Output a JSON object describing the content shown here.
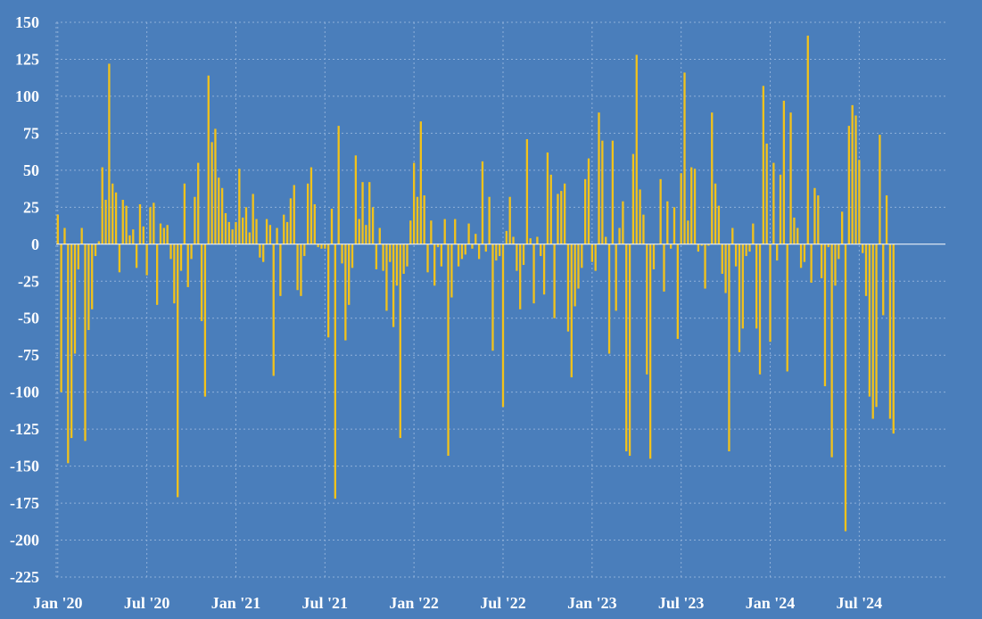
{
  "chart_data": {
    "type": "bar",
    "title": "",
    "xlabel": "",
    "ylabel": "",
    "ylim": [
      -225,
      150
    ],
    "yticks": [
      150,
      125,
      100,
      75,
      50,
      25,
      0,
      -25,
      -50,
      -75,
      -100,
      -125,
      -150,
      -175,
      -200,
      -225
    ],
    "xticks": [
      {
        "label": "Jan '20",
        "index": 0
      },
      {
        "label": "Jul '20",
        "index": 26
      },
      {
        "label": "Jan '21",
        "index": 52
      },
      {
        "label": "Jul '21",
        "index": 78
      },
      {
        "label": "Jan '22",
        "index": 104
      },
      {
        "label": "Jul '22",
        "index": 130
      },
      {
        "label": "Jan '23",
        "index": 156
      },
      {
        "label": "Jul '23",
        "index": 182
      },
      {
        "label": "Jan '24",
        "index": 208
      },
      {
        "label": "Jul '24",
        "index": 234
      }
    ],
    "frequency": "weekly",
    "grid": true,
    "colors": {
      "background": "#4a7ebb",
      "bar": "#f2c21b",
      "grid": "#8fb0d9",
      "zero_line": "#ffffff",
      "text": "#ffffff"
    },
    "series": [
      {
        "values": [
          20,
          -100,
          11,
          -148,
          -131,
          -74,
          -17,
          11,
          -133,
          -58,
          -44,
          -8,
          2,
          52,
          30,
          122,
          41,
          35,
          -19,
          30,
          26,
          6,
          10,
          -16,
          27,
          12,
          -21,
          25,
          28,
          -41,
          14,
          11,
          13,
          -10,
          -40,
          -171,
          -18,
          41,
          -29,
          -10,
          32,
          55,
          -52,
          -103,
          114,
          69,
          78,
          45,
          38,
          21,
          15,
          10,
          15,
          51,
          18,
          25,
          8,
          34,
          17,
          -9,
          -12,
          17,
          13,
          -89,
          11,
          -35,
          20,
          15,
          31,
          40,
          -31,
          -35,
          -8,
          41,
          52,
          27,
          -2,
          -3,
          -3,
          -63,
          24,
          -172,
          80,
          -13,
          -65,
          -41,
          -16,
          60,
          17,
          42,
          13,
          42,
          25,
          -17,
          11,
          -18,
          -45,
          -12,
          -56,
          -28,
          -131,
          -20,
          -15,
          16,
          55,
          32,
          83,
          33,
          -19,
          16,
          -28,
          -2,
          -15,
          17,
          -143,
          -36,
          17,
          -15,
          -10,
          -7,
          14,
          -3,
          7,
          -10,
          56,
          -5,
          32,
          -72,
          -11,
          -8,
          -110,
          9,
          32,
          5,
          -18,
          -44,
          -14,
          71,
          4,
          -40,
          5,
          -8,
          -34,
          62,
          47,
          -50,
          34,
          36,
          41,
          -59,
          -90,
          -42,
          -30,
          -16,
          44,
          58,
          -12,
          -18,
          89,
          70,
          5,
          -74,
          70,
          -45,
          11,
          29,
          -140,
          -143,
          61,
          128,
          37,
          20,
          -88,
          -145,
          -17,
          0,
          44,
          -32,
          29,
          -3,
          25,
          -64,
          48,
          116,
          16,
          52,
          51,
          -5,
          -1,
          -30,
          -1,
          89,
          41,
          26,
          -20,
          -33,
          -140,
          11,
          -15,
          -73,
          -57,
          -8,
          -5,
          14,
          -57,
          -88,
          107,
          68,
          -66,
          55,
          -11,
          47,
          97,
          -86,
          89,
          18,
          11,
          -16,
          -12,
          141,
          -26,
          38,
          33,
          -23,
          -96,
          -2,
          -144,
          -28,
          -10,
          22,
          -194,
          80,
          94,
          87,
          57,
          -6,
          -35,
          -103,
          -118,
          -110,
          74,
          -48,
          33,
          -118,
          -128
        ]
      }
    ]
  }
}
